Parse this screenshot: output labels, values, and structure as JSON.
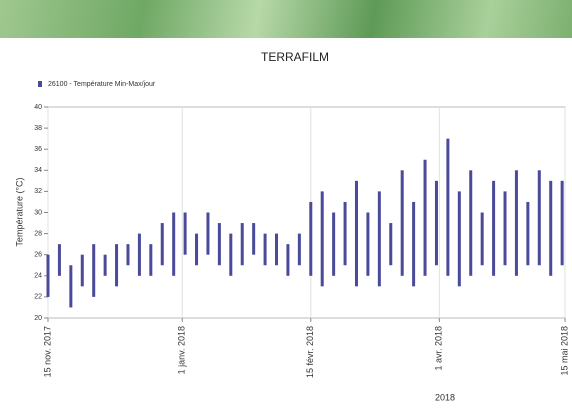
{
  "chart_data": {
    "type": "floating-bar",
    "title": "TERRAFILM",
    "y_label": "Température (°C)",
    "annotation": "2018",
    "x": [
      "2017-11-15",
      "2017-11-19",
      "2017-11-23",
      "2017-11-27",
      "2017-12-01",
      "2017-12-05",
      "2017-12-09",
      "2017-12-13",
      "2017-12-17",
      "2017-12-21",
      "2017-12-25",
      "2017-12-29",
      "2018-01-02",
      "2018-01-06",
      "2018-01-10",
      "2018-01-14",
      "2018-01-18",
      "2018-01-22",
      "2018-01-26",
      "2018-01-30",
      "2018-02-03",
      "2018-02-07",
      "2018-02-11",
      "2018-02-15",
      "2018-02-19",
      "2018-02-23",
      "2018-02-27",
      "2018-03-03",
      "2018-03-07",
      "2018-03-11",
      "2018-03-15",
      "2018-03-19",
      "2018-03-23",
      "2018-03-27",
      "2018-03-31",
      "2018-04-04",
      "2018-04-08",
      "2018-04-12",
      "2018-04-16",
      "2018-04-20",
      "2018-04-24",
      "2018-04-28",
      "2018-05-02",
      "2018-05-06",
      "2018-05-10",
      "2018-05-14"
    ],
    "series": [
      {
        "name": "26100 - Température Min-Max/jour",
        "color": "#4a4a9a",
        "low": [
          22,
          24,
          21,
          23,
          22,
          24,
          23,
          25,
          24,
          24,
          25,
          24,
          26,
          25,
          26,
          25,
          24,
          25,
          26,
          25,
          25,
          24,
          25,
          24,
          23,
          24,
          25,
          23,
          24,
          23,
          25,
          24,
          23,
          24,
          25,
          24,
          23,
          24,
          25,
          24,
          25,
          24,
          25,
          25,
          24,
          25
        ],
        "high": [
          26,
          27,
          25,
          26,
          27,
          26,
          27,
          27,
          28,
          27,
          29,
          30,
          30,
          28,
          30,
          29,
          28,
          29,
          29,
          28,
          28,
          27,
          28,
          31,
          32,
          30,
          31,
          33,
          30,
          32,
          29,
          34,
          31,
          35,
          33,
          37,
          32,
          34,
          30,
          33,
          32,
          34,
          31,
          34,
          33,
          33
        ]
      }
    ],
    "xlim": [
      "2017-11-15",
      "2018-05-15"
    ],
    "xticks": [
      {
        "value": "2017-11-15",
        "label": "15 nov. 2017"
      },
      {
        "value": "2018-01-01",
        "label": "1 janv. 2018"
      },
      {
        "value": "2018-02-15",
        "label": "15 févr. 2018"
      },
      {
        "value": "2018-04-01",
        "label": "1 avr. 2018"
      },
      {
        "value": "2018-05-15",
        "label": "15 mai 2018"
      }
    ],
    "ylim": [
      20,
      40
    ],
    "yticks": [
      20,
      22,
      24,
      26,
      28,
      30,
      32,
      34,
      36,
      38,
      40
    ],
    "grid": "x"
  }
}
